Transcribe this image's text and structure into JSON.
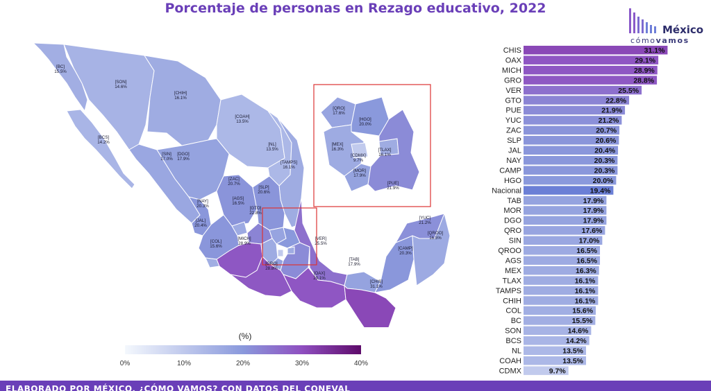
{
  "title": "Porcentaje de personas en Rezago educativo, 2022",
  "logo": {
    "brand": "México",
    "tag_light": "cómo",
    "tag_bold": "vamos"
  },
  "footer": "ELABORADO POR MÉXICO, ¿CÓMO VAMOS? CON DATOS DEL CONEVAL",
  "colors": {
    "accent": "#6a3fb8",
    "low": "#f4f8fd",
    "mid": "#8a99dc",
    "high": "#5e0b6a",
    "national": "#6b7fd6"
  },
  "chart_data": {
    "type": "bar",
    "orientation": "horizontal",
    "value_unit": "%",
    "categories": [
      "CHIS",
      "OAX",
      "MICH",
      "GRO",
      "VER",
      "GTO",
      "PUE",
      "YUC",
      "ZAC",
      "SLP",
      "JAL",
      "NAY",
      "CAMP",
      "HGO",
      "Nacional",
      "TAB",
      "MOR",
      "DGO",
      "QRO",
      "SIN",
      "QROO",
      "AGS",
      "MEX",
      "TLAX",
      "TAMPS",
      "CHIH",
      "COL",
      "BC",
      "SON",
      "BCS",
      "NL",
      "COAH",
      "CDMX"
    ],
    "values": [
      31.1,
      29.1,
      28.9,
      28.8,
      25.5,
      22.8,
      21.9,
      21.2,
      20.7,
      20.6,
      20.4,
      20.3,
      20.3,
      20.0,
      19.4,
      17.9,
      17.9,
      17.9,
      17.6,
      17.0,
      16.5,
      16.5,
      16.3,
      16.1,
      16.1,
      16.1,
      15.6,
      15.5,
      14.6,
      14.2,
      13.5,
      13.5,
      9.7
    ],
    "value_labels": [
      "31.1%",
      "29.1%",
      "28.9%",
      "28.8%",
      "25.5%",
      "22.8%",
      "21.9%",
      "21.2%",
      "20.7%",
      "20.6%",
      "20.4%",
      "20.3%",
      "20.3%",
      "20.0%",
      "19.4%",
      "17.9%",
      "17.9%",
      "17.9%",
      "17.6%",
      "17.0%",
      "16.5%",
      "16.5%",
      "16.3%",
      "16.1%",
      "16.1%",
      "16.1%",
      "15.6%",
      "15.5%",
      "14.6%",
      "14.2%",
      "13.5%",
      "13.5%",
      "9.7%"
    ],
    "highlight": "Nacional"
  },
  "map": {
    "legend_title": "(%)",
    "colorbar_range": [
      0,
      40
    ],
    "colorbar_ticks": [
      {
        "value": 0,
        "label": "0%"
      },
      {
        "value": 10,
        "label": "10%"
      },
      {
        "value": 20,
        "label": "20%"
      },
      {
        "value": 30,
        "label": "30%"
      },
      {
        "value": 40,
        "label": "40%"
      }
    ],
    "state_labels": [
      {
        "code": "[BC]",
        "value": "15.5%"
      },
      {
        "code": "[SON]",
        "value": "14.6%"
      },
      {
        "code": "[CHIH]",
        "value": "16.1%"
      },
      {
        "code": "[BCS]",
        "value": "14.2%"
      },
      {
        "code": "[SIN]",
        "value": "17.0%"
      },
      {
        "code": "[DGO]",
        "value": "17.9%"
      },
      {
        "code": "[COAH]",
        "value": "13.5%"
      },
      {
        "code": "[NL]",
        "value": "13.5%"
      },
      {
        "code": "[TAMPS]",
        "value": "16.1%"
      },
      {
        "code": "[ZAC]",
        "value": "20.7%"
      },
      {
        "code": "[SLP]",
        "value": "20.6%"
      },
      {
        "code": "[AGS]",
        "value": "16.5%"
      },
      {
        "code": "[NAY]",
        "value": "20.3%"
      },
      {
        "code": "[GTO]",
        "value": "22.8%"
      },
      {
        "code": "[JAL]",
        "value": "20.4%"
      },
      {
        "code": "[COL]",
        "value": "15.6%"
      },
      {
        "code": "[MICH]",
        "value": "28.9%"
      },
      {
        "code": "[VER]",
        "value": "25.5%"
      },
      {
        "code": "[GRO]",
        "value": "28.8%"
      },
      {
        "code": "[OAX]",
        "value": "29.1%"
      },
      {
        "code": "[TAB]",
        "value": "17.9%"
      },
      {
        "code": "[CHIS]",
        "value": "31.1%"
      },
      {
        "code": "[CAMP]",
        "value": "20.3%"
      },
      {
        "code": "[YUC]",
        "value": "21.2%"
      },
      {
        "code": "[QROO]",
        "value": "16.5%"
      }
    ],
    "inset_labels": [
      {
        "code": "[QRO]",
        "value": "17.6%"
      },
      {
        "code": "[HGO]",
        "value": "20.0%"
      },
      {
        "code": "[MEX]",
        "value": "16.3%"
      },
      {
        "code": "[CDMX]",
        "value": "9.7%"
      },
      {
        "code": "[TLAX]",
        "value": "16.1%"
      },
      {
        "code": "[MOR]",
        "value": "17.9%"
      },
      {
        "code": "[PUE]",
        "value": "21.9%"
      }
    ]
  }
}
